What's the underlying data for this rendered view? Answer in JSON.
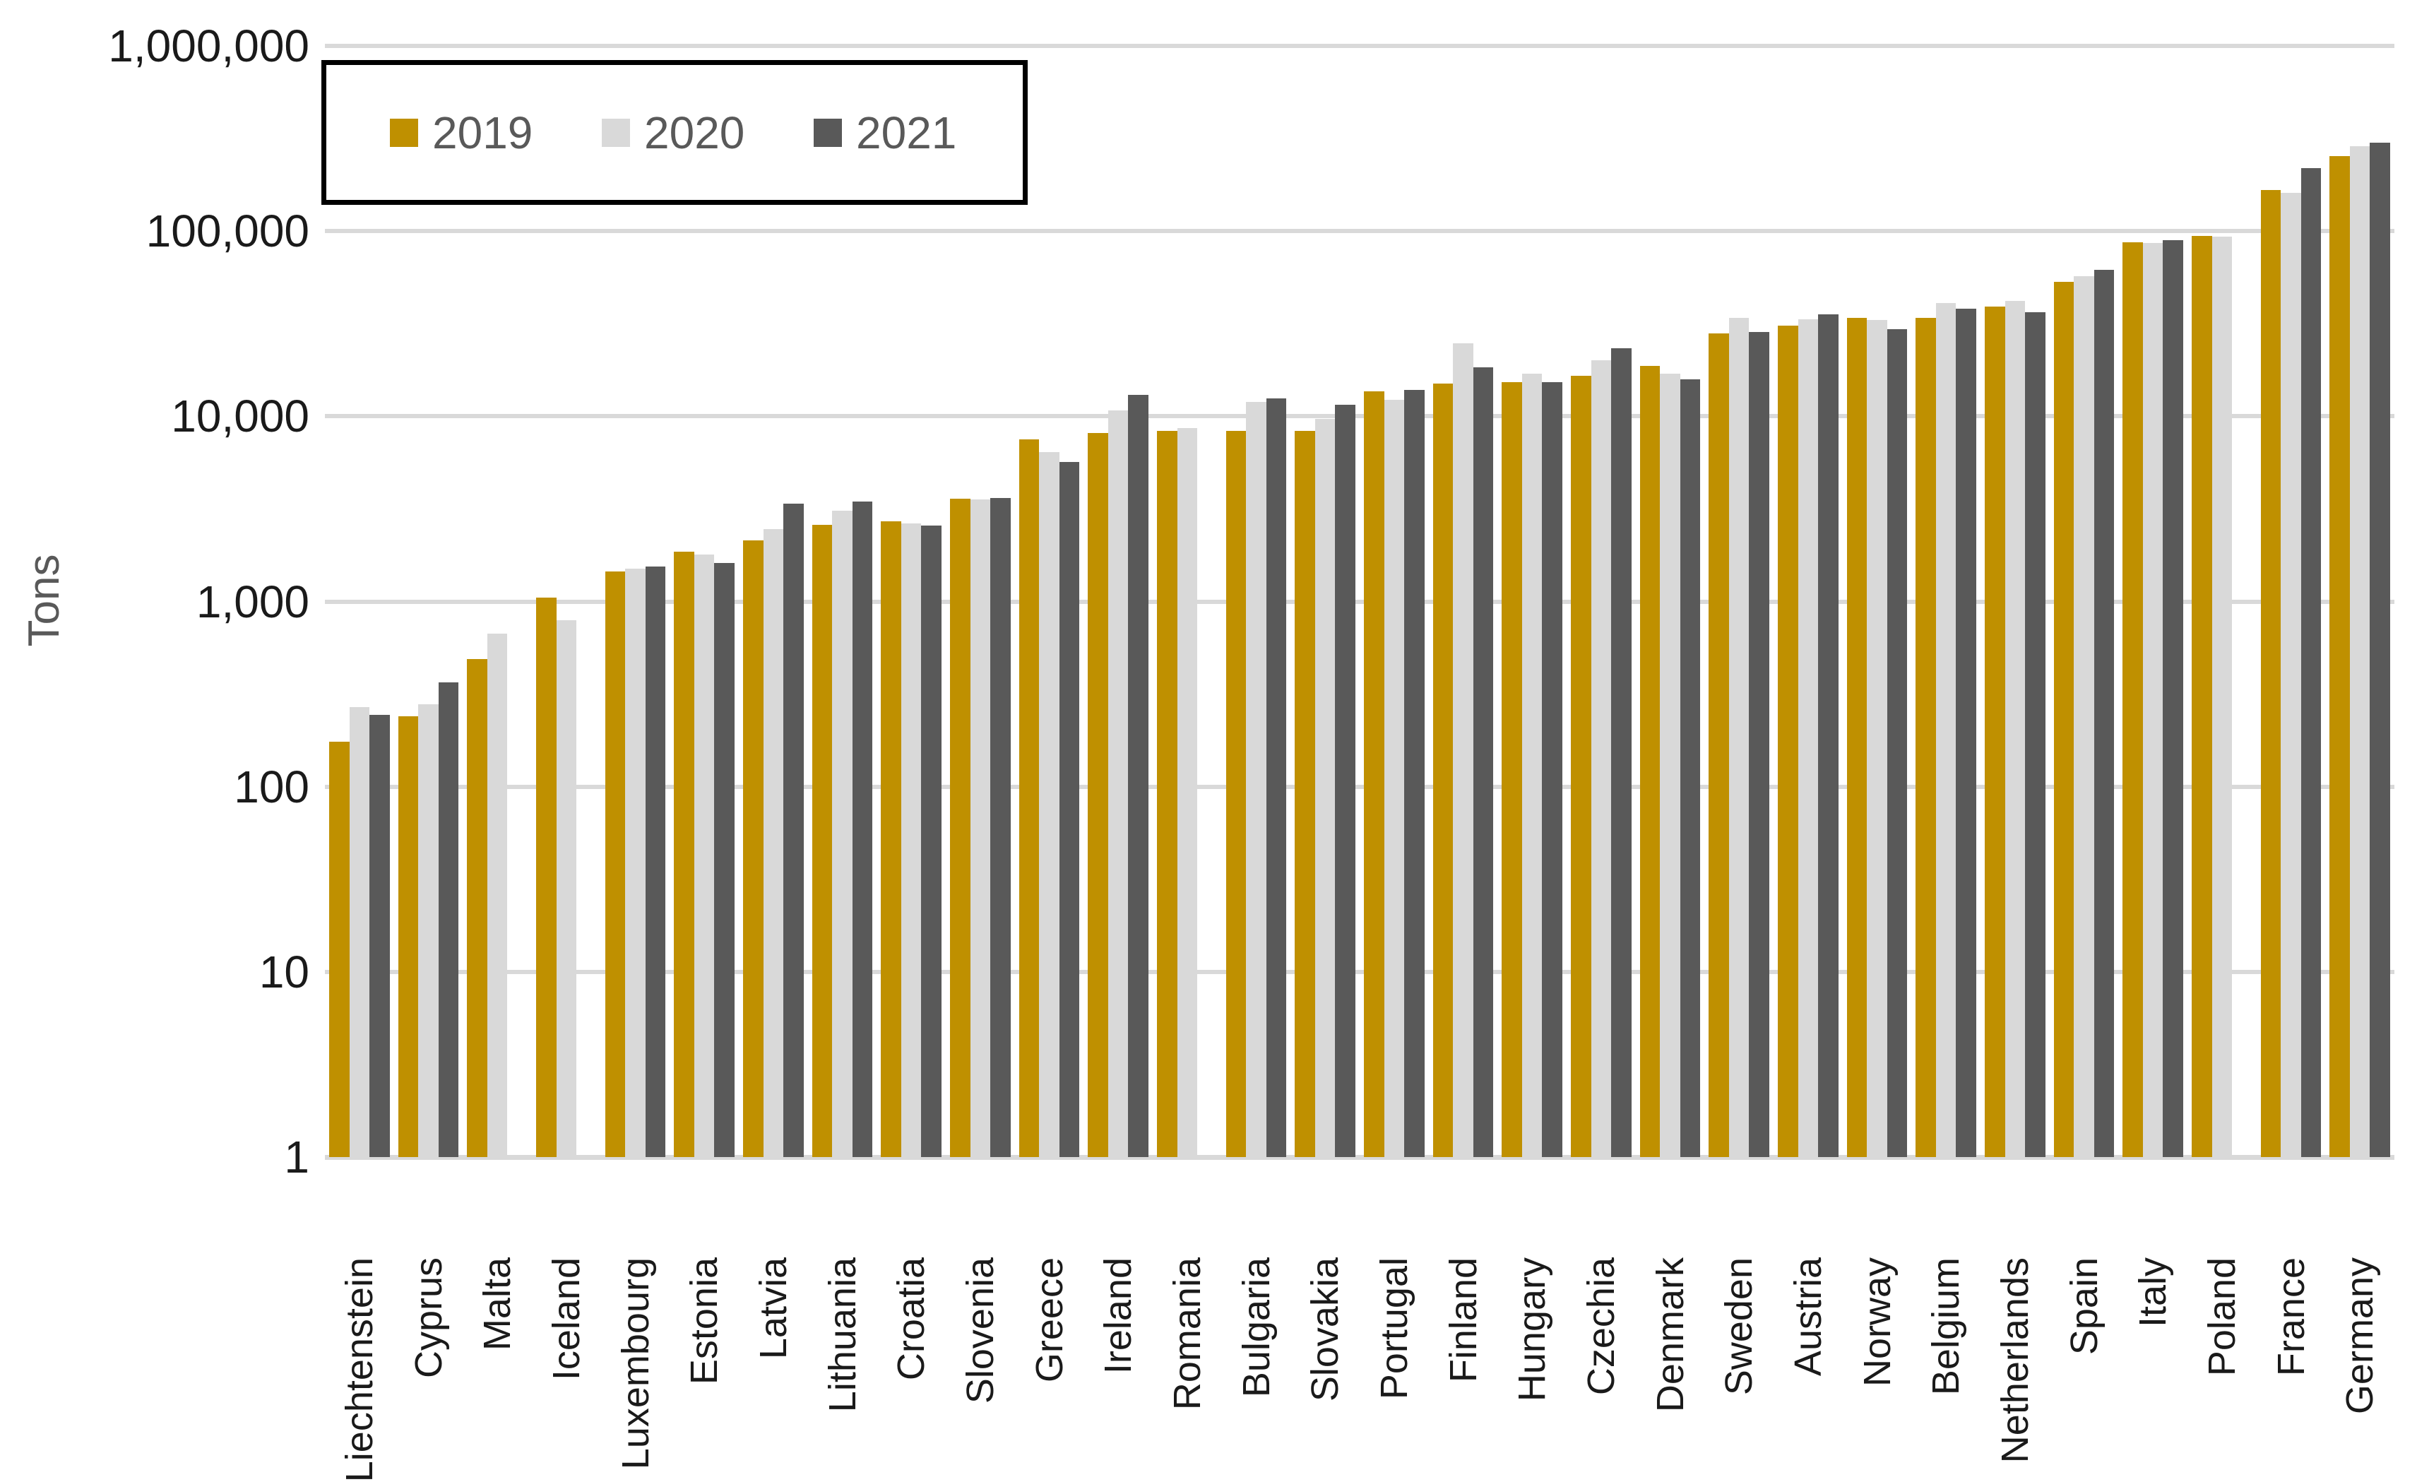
{
  "chart_data": {
    "type": "bar",
    "title": "",
    "ylabel": "Tons",
    "yscale": "log",
    "ylim": [
      1,
      1000000
    ],
    "yticks": [
      1,
      10,
      100,
      1000,
      10000,
      100000,
      1000000
    ],
    "ytick_labels": [
      "1",
      "10",
      "100",
      "1,000",
      "10,000",
      "100,000",
      "1,000,000"
    ],
    "grid": "horizontal",
    "legend_position": "top-left-inside-box",
    "categories": [
      "Liechtenstein",
      "Cyprus",
      "Malta",
      "Iceland",
      "Luxembourg",
      "Estonia",
      "Latvia",
      "Lithuania",
      "Croatia",
      "Slovenia",
      "Greece",
      "Ireland",
      "Romania",
      "Bulgaria",
      "Slovakia",
      "Portugal",
      "Finland",
      "Hungary",
      "Czechia",
      "Denmark",
      "Sweden",
      "Austria",
      "Norway",
      "Belgium",
      "Netherlands",
      "Spain",
      "Italy",
      "Poland",
      "France",
      "Germany"
    ],
    "series": [
      {
        "name": "2019",
        "color": "#BF9000",
        "values": [
          175,
          240,
          490,
          1050,
          1450,
          1860,
          2140,
          2600,
          2710,
          3580,
          7500,
          8100,
          8340,
          8360,
          8340,
          13600,
          15000,
          15300,
          16600,
          18700,
          28000,
          31000,
          34000,
          34000,
          39000,
          53000,
          87000,
          94000,
          166000,
          255000
        ]
      },
      {
        "name": "2020",
        "color": "#D9D9D9",
        "values": [
          270,
          278,
          670,
          790,
          1500,
          1800,
          2450,
          3100,
          2650,
          3570,
          6400,
          10800,
          8640,
          12000,
          9700,
          12300,
          24700,
          17000,
          20000,
          17000,
          34000,
          33500,
          33000,
          41000,
          42000,
          57000,
          86500,
          93000,
          161000,
          287000
        ]
      },
      {
        "name": "2021",
        "color": "#595959",
        "values": [
          245,
          367,
          null,
          null,
          1550,
          1610,
          3380,
          3480,
          2560,
          3620,
          5650,
          13000,
          null,
          12500,
          11550,
          13900,
          18400,
          15300,
          23400,
          15800,
          28500,
          35500,
          29600,
          38000,
          36500,
          62000,
          89000,
          null,
          219000,
          300000
        ]
      }
    ]
  },
  "colors": {
    "background": "#FFFFFF",
    "gridline": "#D9D9D9",
    "axis_text": "#1A1A1A",
    "legend_text": "#595959",
    "legend_border": "#000000"
  }
}
